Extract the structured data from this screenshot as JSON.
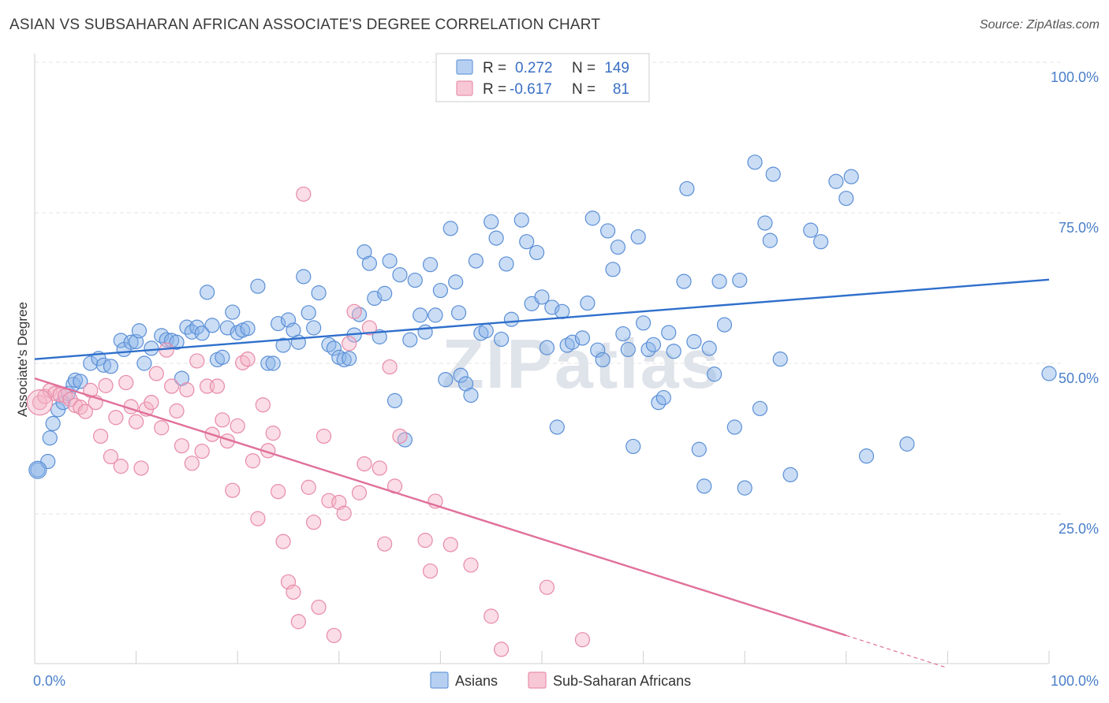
{
  "chart_data": {
    "type": "scatter",
    "title": "ASIAN VS SUBSAHARAN AFRICAN ASSOCIATE'S DEGREE CORRELATION CHART",
    "source": "Source: ZipAtlas.com",
    "xlabel": "",
    "ylabel": "Associate's Degree",
    "xlim": [
      0,
      100
    ],
    "ylim": [
      0,
      100
    ],
    "x_tick_labels": [
      "0.0%",
      "100.0%"
    ],
    "y_tick_labels": [
      {
        "value": 100,
        "label": "100.0%"
      },
      {
        "value": 75,
        "label": "75.0%"
      },
      {
        "value": 50,
        "label": "50.0%"
      },
      {
        "value": 25,
        "label": "25.0%"
      }
    ],
    "watermark": "ZIPatlas",
    "legend": {
      "rows": [
        {
          "r_label": "R =",
          "r_value": "0.272",
          "n_label": "N =",
          "n_value": "149"
        },
        {
          "r_label": "R =",
          "r_value": "-0.617",
          "n_label": "N =",
          "n_value": "81"
        }
      ]
    },
    "series": [
      {
        "name": "Asians",
        "color": "#8ab4e8",
        "stroke": "#5b8fd6",
        "trend_color": "#2f6fcc",
        "trend": {
          "x": [
            0,
            100
          ],
          "y": [
            50.7,
            63.9
          ]
        },
        "points": [
          [
            0.3,
            32.3
          ],
          [
            1.3,
            33.7
          ],
          [
            1.5,
            37.6
          ],
          [
            1.8,
            40
          ],
          [
            2.3,
            42.3
          ],
          [
            2.8,
            43.5
          ],
          [
            3.3,
            45
          ],
          [
            3.8,
            46.5
          ],
          [
            4,
            47.2
          ],
          [
            4.5,
            47
          ],
          [
            5.5,
            50
          ],
          [
            6.3,
            50.8
          ],
          [
            6.8,
            49.7
          ],
          [
            7.5,
            49.5
          ],
          [
            8.5,
            53.8
          ],
          [
            8.8,
            52.3
          ],
          [
            9.5,
            53.5
          ],
          [
            10,
            53.6
          ],
          [
            10.3,
            55.4
          ],
          [
            10.8,
            50
          ],
          [
            11.5,
            52.5
          ],
          [
            12.5,
            54.6
          ],
          [
            13,
            53.9
          ],
          [
            13.5,
            53.8
          ],
          [
            14,
            53.5
          ],
          [
            14.5,
            47.5
          ],
          [
            15,
            56
          ],
          [
            15.5,
            55.2
          ],
          [
            16,
            56
          ],
          [
            16.5,
            55
          ],
          [
            17,
            61.8
          ],
          [
            17.5,
            56.3
          ],
          [
            18,
            50.6
          ],
          [
            18.5,
            51
          ],
          [
            19,
            55.9
          ],
          [
            19.5,
            58.5
          ],
          [
            20,
            55.1
          ],
          [
            20.5,
            55.5
          ],
          [
            21,
            55.8
          ],
          [
            22,
            62.8
          ],
          [
            23,
            50
          ],
          [
            23.5,
            50
          ],
          [
            24,
            56.6
          ],
          [
            24.5,
            53
          ],
          [
            25,
            57.2
          ],
          [
            25.5,
            55.5
          ],
          [
            26,
            53.5
          ],
          [
            26.5,
            64.4
          ],
          [
            27,
            58.4
          ],
          [
            27.5,
            55.9
          ],
          [
            28,
            61.7
          ],
          [
            29,
            53.1
          ],
          [
            29.5,
            52.5
          ],
          [
            30,
            51
          ],
          [
            30.5,
            50.6
          ],
          [
            31,
            50.8
          ],
          [
            31.5,
            54.7
          ],
          [
            32,
            58.1
          ],
          [
            32.5,
            68.5
          ],
          [
            33,
            66.6
          ],
          [
            33.5,
            60.8
          ],
          [
            34,
            54.4
          ],
          [
            34.5,
            61.6
          ],
          [
            35,
            67
          ],
          [
            35.5,
            43.8
          ],
          [
            36,
            64.7
          ],
          [
            36.5,
            37.3
          ],
          [
            37,
            53.9
          ],
          [
            37.5,
            63.8
          ],
          [
            38,
            58
          ],
          [
            38.5,
            55.2
          ],
          [
            39,
            66.4
          ],
          [
            39.5,
            58
          ],
          [
            40,
            62.1
          ],
          [
            40.5,
            47.3
          ],
          [
            41,
            72.4
          ],
          [
            41.5,
            63.5
          ],
          [
            41.8,
            58.4
          ],
          [
            42,
            48
          ],
          [
            42.5,
            46.6
          ],
          [
            43,
            44.7
          ],
          [
            43.5,
            67
          ],
          [
            44,
            55
          ],
          [
            44.5,
            55.4
          ],
          [
            45,
            73.5
          ],
          [
            45.5,
            70.8
          ],
          [
            46,
            54
          ],
          [
            46.5,
            66.5
          ],
          [
            47,
            57.3
          ],
          [
            48,
            73.8
          ],
          [
            48.5,
            70.2
          ],
          [
            49,
            59.9
          ],
          [
            49.5,
            68.4
          ],
          [
            50,
            61
          ],
          [
            50.5,
            52.6
          ],
          [
            51,
            59.3
          ],
          [
            51.5,
            39.4
          ],
          [
            52,
            58.6
          ],
          [
            52.5,
            53
          ],
          [
            53,
            53.5
          ],
          [
            54,
            54.2
          ],
          [
            54.5,
            60
          ],
          [
            55,
            74.1
          ],
          [
            55.5,
            52.2
          ],
          [
            56,
            50.6
          ],
          [
            56.5,
            72
          ],
          [
            57,
            65.6
          ],
          [
            57.5,
            69.3
          ],
          [
            58,
            54.9
          ],
          [
            58.5,
            52.3
          ],
          [
            59,
            36.2
          ],
          [
            59.5,
            71
          ],
          [
            60,
            56.7
          ],
          [
            60.5,
            52.3
          ],
          [
            61,
            53.1
          ],
          [
            61.5,
            43.5
          ],
          [
            62,
            44.3
          ],
          [
            62.5,
            55.1
          ],
          [
            63,
            52
          ],
          [
            64,
            63.6
          ],
          [
            64.3,
            79
          ],
          [
            65,
            53.6
          ],
          [
            65.5,
            35.7
          ],
          [
            66,
            29.6
          ],
          [
            66.5,
            52.5
          ],
          [
            67,
            48.2
          ],
          [
            67.5,
            63.6
          ],
          [
            68,
            56.4
          ],
          [
            69,
            39.4
          ],
          [
            69.5,
            63.8
          ],
          [
            70,
            29.3
          ],
          [
            71,
            83.4
          ],
          [
            71.5,
            42.5
          ],
          [
            72,
            73.3
          ],
          [
            72.5,
            70.4
          ],
          [
            72.8,
            81.4
          ],
          [
            73.5,
            50.7
          ],
          [
            74.5,
            31.5
          ],
          [
            76.5,
            72.1
          ],
          [
            77.5,
            70.2
          ],
          [
            79,
            80.2
          ],
          [
            80,
            77.4
          ],
          [
            80.5,
            81
          ],
          [
            82,
            34.6
          ],
          [
            86,
            36.6
          ],
          [
            100,
            48.3
          ]
        ]
      },
      {
        "name": "Sub-Saharan Africans",
        "color": "#f5b3c7",
        "stroke": "#e88aa8",
        "trend_color": "#e0709a",
        "trend": {
          "x": [
            0,
            80
          ],
          "y": [
            47.5,
            4.8
          ]
        },
        "trend_dash": {
          "x": [
            80,
            90
          ],
          "y": [
            4.8,
            -0.6
          ]
        },
        "points": [
          [
            0.5,
            43.5
          ],
          [
            1,
            44.5
          ],
          [
            1.5,
            45.5
          ],
          [
            2,
            45
          ],
          [
            2.5,
            44.8
          ],
          [
            3,
            44.6
          ],
          [
            3.5,
            44
          ],
          [
            4,
            43
          ],
          [
            4.5,
            42.7
          ],
          [
            5,
            42
          ],
          [
            5.5,
            45.5
          ],
          [
            6,
            43.5
          ],
          [
            6.5,
            37.9
          ],
          [
            7,
            46.3
          ],
          [
            7.5,
            34.5
          ],
          [
            8,
            41
          ],
          [
            8.5,
            32.9
          ],
          [
            9,
            46.8
          ],
          [
            9.5,
            42.8
          ],
          [
            10,
            40.3
          ],
          [
            10.5,
            32.6
          ],
          [
            11,
            42.4
          ],
          [
            11.5,
            43.5
          ],
          [
            12,
            48.3
          ],
          [
            12.5,
            39.3
          ],
          [
            13,
            52.2
          ],
          [
            13.5,
            46.2
          ],
          [
            14,
            42.1
          ],
          [
            14.5,
            36.3
          ],
          [
            15,
            45.6
          ],
          [
            15.5,
            33.4
          ],
          [
            16,
            50.4
          ],
          [
            16.5,
            35.4
          ],
          [
            17,
            46.2
          ],
          [
            17.5,
            38.2
          ],
          [
            18,
            46.2
          ],
          [
            18.5,
            40.6
          ],
          [
            19,
            37.1
          ],
          [
            19.5,
            28.9
          ],
          [
            20,
            39.6
          ],
          [
            20.5,
            50.1
          ],
          [
            21,
            50.7
          ],
          [
            21.5,
            33.8
          ],
          [
            22,
            24.2
          ],
          [
            22.5,
            43.1
          ],
          [
            23,
            35.5
          ],
          [
            23.5,
            38.4
          ],
          [
            24,
            28.7
          ],
          [
            24.5,
            20.4
          ],
          [
            25,
            13.7
          ],
          [
            25.5,
            12
          ],
          [
            26,
            7.1
          ],
          [
            26.5,
            78.1
          ],
          [
            27,
            29.4
          ],
          [
            27.5,
            23.6
          ],
          [
            28,
            9.5
          ],
          [
            28.5,
            37.9
          ],
          [
            29,
            27.2
          ],
          [
            29.5,
            4.8
          ],
          [
            30,
            26.9
          ],
          [
            30.5,
            25.1
          ],
          [
            31,
            53.3
          ],
          [
            31.5,
            58.6
          ],
          [
            32,
            28.5
          ],
          [
            32.5,
            33.3
          ],
          [
            33,
            55.9
          ],
          [
            34,
            32.6
          ],
          [
            34.5,
            20
          ],
          [
            35,
            49.4
          ],
          [
            35.5,
            29.6
          ],
          [
            36,
            37.9
          ],
          [
            38.5,
            20.6
          ],
          [
            39,
            15.5
          ],
          [
            39.5,
            27.1
          ],
          [
            41,
            19.9
          ],
          [
            43,
            16.5
          ],
          [
            45,
            8
          ],
          [
            46,
            2.5
          ],
          [
            50.5,
            12.8
          ],
          [
            54,
            4.1
          ]
        ]
      }
    ]
  }
}
